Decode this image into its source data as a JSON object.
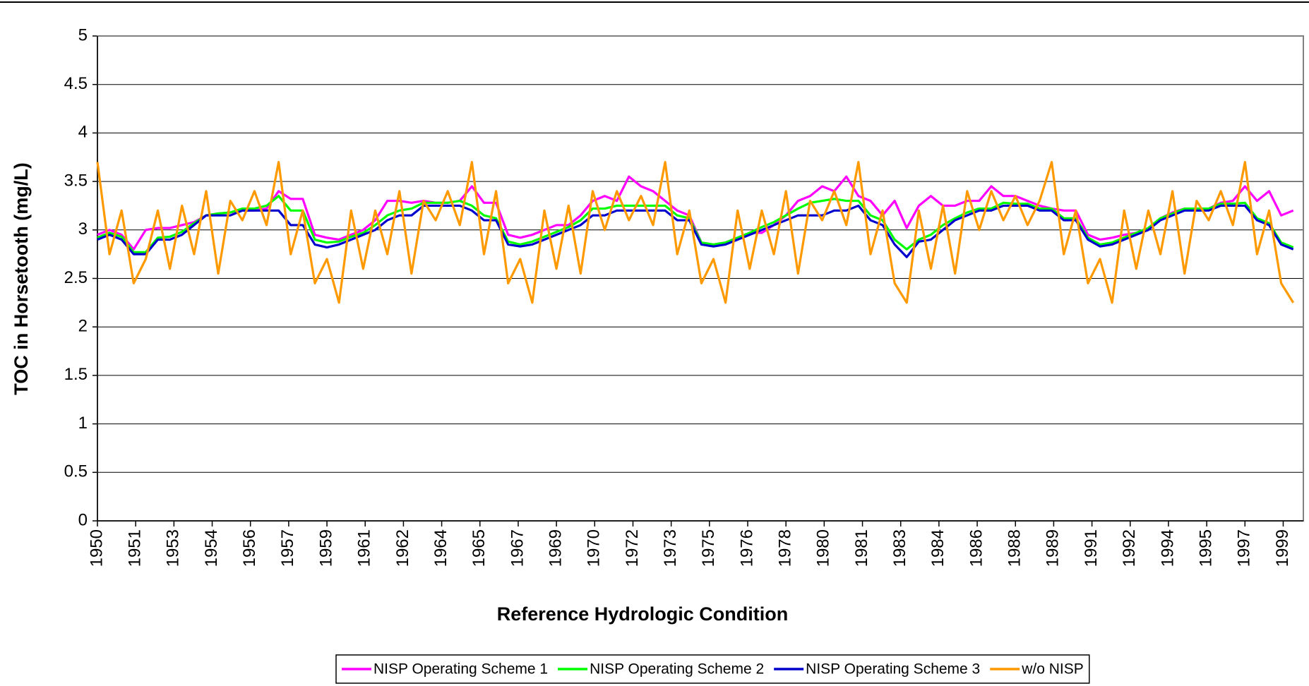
{
  "chart_data": {
    "type": "line",
    "xlabel": "Reference Hydrologic Condition",
    "ylabel": "TOC in Horsetooth (mg/L)",
    "xlim": [
      1950,
      1999.917
    ],
    "ylim": [
      0,
      5
    ],
    "yticks": [
      0,
      0.5,
      1,
      1.5,
      2,
      2.5,
      3,
      3.5,
      4,
      4.5,
      5
    ],
    "xticks": [
      1950,
      {
        "value": 1951.583,
        "label": "1951"
      },
      {
        "value": 1953.167,
        "label": "1953"
      },
      {
        "value": 1954.75,
        "label": "1954"
      },
      {
        "value": 1956.333,
        "label": "1956"
      },
      {
        "value": 1957.917,
        "label": "1957"
      },
      {
        "value": 1959.5,
        "label": "1959"
      },
      {
        "value": 1961.083,
        "label": "1961"
      },
      {
        "value": 1962.667,
        "label": "1962"
      },
      {
        "value": 1964.25,
        "label": "1964"
      },
      {
        "value": 1965.833,
        "label": "1965"
      },
      {
        "value": 1967.417,
        "label": "1967"
      },
      1969,
      {
        "value": 1970.583,
        "label": "1970"
      },
      {
        "value": 1972.167,
        "label": "1972"
      },
      {
        "value": 1973.75,
        "label": "1973"
      },
      {
        "value": 1975.333,
        "label": "1975"
      },
      {
        "value": 1976.917,
        "label": "1976"
      },
      {
        "value": 1978.5,
        "label": "1978"
      },
      {
        "value": 1980.083,
        "label": "1980"
      },
      {
        "value": 1981.667,
        "label": "1981"
      },
      {
        "value": 1983.25,
        "label": "1983"
      },
      {
        "value": 1984.833,
        "label": "1984"
      },
      {
        "value": 1986.417,
        "label": "1986"
      },
      1988,
      {
        "value": 1989.583,
        "label": "1989"
      },
      {
        "value": 1991.167,
        "label": "1991"
      },
      {
        "value": 1992.75,
        "label": "1992"
      },
      {
        "value": 1994.333,
        "label": "1994"
      },
      {
        "value": 1995.917,
        "label": "1995"
      },
      {
        "value": 1997.5,
        "label": "1997"
      },
      {
        "value": 1999.083,
        "label": "1999"
      }
    ],
    "grid": true,
    "legend": "bottom",
    "x": [
      1950,
      1950.5,
      1951,
      1951.5,
      1952,
      1952.5,
      1953,
      1953.5,
      1954,
      1954.5,
      1955,
      1955.5,
      1956,
      1956.5,
      1957,
      1957.5,
      1958,
      1958.5,
      1959,
      1959.5,
      1960,
      1960.5,
      1961,
      1961.5,
      1962,
      1962.5,
      1963,
      1963.5,
      1964,
      1964.5,
      1965,
      1965.5,
      1966,
      1966.5,
      1967,
      1967.5,
      1968,
      1968.5,
      1969,
      1969.5,
      1970,
      1970.5,
      1971,
      1971.5,
      1972,
      1972.5,
      1973,
      1973.5,
      1974,
      1974.5,
      1975,
      1975.5,
      1976,
      1976.5,
      1977,
      1977.5,
      1978,
      1978.5,
      1979,
      1979.5,
      1980,
      1980.5,
      1981,
      1981.5,
      1982,
      1982.5,
      1983,
      1983.5,
      1984,
      1984.5,
      1985,
      1985.5,
      1986,
      1986.5,
      1987,
      1987.5,
      1988,
      1988.5,
      1989,
      1989.5,
      1990,
      1990.5,
      1991,
      1991.5,
      1992,
      1992.5,
      1993,
      1993.5,
      1994,
      1994.5,
      1995,
      1995.5,
      1996,
      1996.5,
      1997,
      1997.5,
      1998,
      1998.5,
      1999,
      1999.5
    ],
    "series": [
      {
        "name": "NISP Operating Scheme 1",
        "color": "#ff00ff",
        "values": [
          2.95,
          3.0,
          2.95,
          2.8,
          3.0,
          3.02,
          3.02,
          3.05,
          3.08,
          3.15,
          3.17,
          3.18,
          3.2,
          3.2,
          3.22,
          3.4,
          3.32,
          3.32,
          2.95,
          2.92,
          2.9,
          2.95,
          3.0,
          3.1,
          3.3,
          3.3,
          3.28,
          3.3,
          3.28,
          3.28,
          3.3,
          3.45,
          3.28,
          3.28,
          2.95,
          2.92,
          2.95,
          3.0,
          3.05,
          3.05,
          3.15,
          3.3,
          3.35,
          3.3,
          3.55,
          3.45,
          3.4,
          3.3,
          3.2,
          3.15,
          2.87,
          2.85,
          2.87,
          2.92,
          2.97,
          2.97,
          3.05,
          3.15,
          3.3,
          3.35,
          3.45,
          3.4,
          3.55,
          3.35,
          3.3,
          3.15,
          3.3,
          3.02,
          3.25,
          3.35,
          3.25,
          3.25,
          3.3,
          3.3,
          3.45,
          3.35,
          3.35,
          3.3,
          3.25,
          3.22,
          3.2,
          3.2,
          2.95,
          2.9,
          2.92,
          2.95,
          2.97,
          3.0,
          3.12,
          3.18,
          3.22,
          3.22,
          3.22,
          3.28,
          3.3,
          3.45,
          3.3,
          3.4,
          3.15,
          3.2
        ]
      },
      {
        "name": "NISP Operating Scheme 2",
        "color": "#00ff00",
        "values": [
          2.92,
          2.97,
          2.93,
          2.77,
          2.77,
          2.92,
          2.93,
          2.98,
          3.07,
          3.15,
          3.17,
          3.18,
          3.22,
          3.22,
          3.25,
          3.35,
          3.2,
          3.2,
          2.9,
          2.87,
          2.88,
          2.93,
          2.97,
          3.05,
          3.15,
          3.2,
          3.22,
          3.28,
          3.28,
          3.28,
          3.3,
          3.25,
          3.15,
          3.12,
          2.88,
          2.85,
          2.88,
          2.93,
          2.98,
          3.03,
          3.1,
          3.22,
          3.22,
          3.25,
          3.25,
          3.25,
          3.25,
          3.25,
          3.15,
          3.12,
          2.87,
          2.85,
          2.87,
          2.92,
          2.97,
          3.03,
          3.08,
          3.15,
          3.22,
          3.28,
          3.3,
          3.32,
          3.3,
          3.3,
          3.15,
          3.1,
          2.9,
          2.8,
          2.9,
          2.95,
          3.05,
          3.12,
          3.18,
          3.22,
          3.22,
          3.28,
          3.27,
          3.27,
          3.22,
          3.22,
          3.12,
          3.12,
          2.92,
          2.85,
          2.87,
          2.92,
          2.97,
          3.02,
          3.12,
          3.17,
          3.22,
          3.22,
          3.22,
          3.27,
          3.27,
          3.28,
          3.12,
          3.07,
          2.87,
          2.82
        ]
      },
      {
        "name": "NISP Operating Scheme 3",
        "color": "#0000cc",
        "values": [
          2.9,
          2.95,
          2.9,
          2.75,
          2.75,
          2.9,
          2.9,
          2.95,
          3.05,
          3.15,
          3.15,
          3.15,
          3.2,
          3.2,
          3.2,
          3.2,
          3.05,
          3.05,
          2.85,
          2.82,
          2.85,
          2.9,
          2.95,
          3.0,
          3.1,
          3.15,
          3.15,
          3.25,
          3.25,
          3.25,
          3.25,
          3.2,
          3.1,
          3.1,
          2.85,
          2.83,
          2.85,
          2.9,
          2.95,
          3.0,
          3.05,
          3.15,
          3.15,
          3.2,
          3.2,
          3.2,
          3.2,
          3.2,
          3.1,
          3.1,
          2.85,
          2.83,
          2.85,
          2.9,
          2.95,
          3.0,
          3.05,
          3.1,
          3.15,
          3.15,
          3.15,
          3.2,
          3.2,
          3.25,
          3.1,
          3.05,
          2.85,
          2.72,
          2.88,
          2.9,
          3.0,
          3.1,
          3.15,
          3.2,
          3.2,
          3.25,
          3.25,
          3.25,
          3.2,
          3.2,
          3.1,
          3.1,
          2.9,
          2.83,
          2.85,
          2.9,
          2.95,
          3.0,
          3.1,
          3.15,
          3.2,
          3.2,
          3.2,
          3.25,
          3.25,
          3.25,
          3.1,
          3.05,
          2.85,
          2.8
        ]
      },
      {
        "name": "w/o NISP",
        "color": "#ff9900",
        "values": [
          3.7,
          2.75,
          3.2,
          2.45,
          2.7,
          3.2,
          2.6,
          3.25,
          2.75,
          3.4,
          2.55,
          3.3,
          3.1,
          3.4,
          3.05,
          3.7,
          2.75,
          3.2,
          2.45,
          2.7,
          2.25,
          3.2,
          2.6,
          3.2,
          2.75,
          3.4,
          2.55,
          3.3,
          3.1,
          3.4,
          3.05,
          3.7,
          2.75,
          3.4,
          2.45,
          2.7,
          2.25,
          3.2,
          2.6,
          3.25,
          2.55,
          3.4,
          3.0,
          3.4,
          3.1,
          3.35,
          3.05,
          3.7,
          2.75,
          3.2,
          2.45,
          2.7,
          2.25,
          3.2,
          2.6,
          3.2,
          2.75,
          3.4,
          2.55,
          3.3,
          3.1,
          3.4,
          3.05,
          3.7,
          2.75,
          3.2,
          2.45,
          2.25,
          3.2,
          2.6,
          3.25,
          2.55,
          3.4,
          3.0,
          3.4,
          3.1,
          3.35,
          3.05,
          3.3,
          3.7,
          2.75,
          3.2,
          2.45,
          2.7,
          2.25,
          3.2,
          2.6,
          3.2,
          2.75,
          3.4,
          2.55,
          3.3,
          3.1,
          3.4,
          3.05,
          3.7,
          2.75,
          3.2,
          2.45,
          2.25
        ]
      }
    ]
  }
}
